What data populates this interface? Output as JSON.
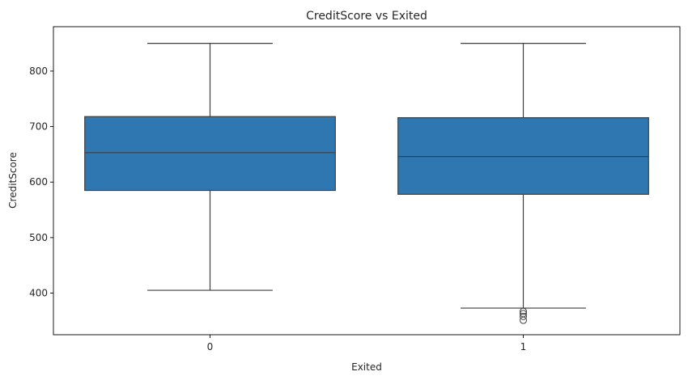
{
  "chart_data": {
    "type": "box",
    "title": "CreditScore vs Exited",
    "xlabel": "Exited",
    "ylabel": "CreditScore",
    "categories": [
      "0",
      "1"
    ],
    "ylim": [
      325,
      880
    ],
    "yticks": [
      400,
      500,
      600,
      700,
      800
    ],
    "grid": false,
    "color": "#2f77b1",
    "line_color": "#3f3f3f",
    "boxes": [
      {
        "category": "0",
        "whisker_low": 405,
        "q1": 585,
        "median": 653,
        "q3": 718,
        "whisker_high": 850,
        "outliers": []
      },
      {
        "category": "1",
        "whisker_low": 373,
        "q1": 578,
        "median": 646,
        "q3": 716,
        "whisker_high": 850,
        "outliers": [
          351,
          358,
          363,
          367
        ]
      }
    ]
  }
}
